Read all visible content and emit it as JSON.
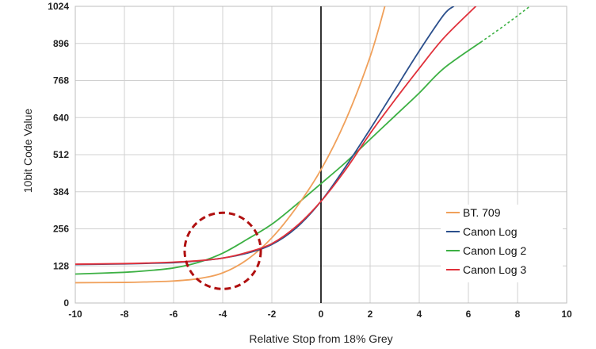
{
  "chart_data": {
    "type": "line",
    "xlabel": "Relative Stop from 18% Grey",
    "ylabel": "10bit Code Value",
    "xlim": [
      -10,
      10
    ],
    "ylim": [
      0,
      1024
    ],
    "xticks": [
      -10,
      -8,
      -6,
      -4,
      -2,
      0,
      2,
      4,
      6,
      8,
      10
    ],
    "yticks": [
      0,
      128,
      256,
      384,
      512,
      640,
      768,
      896,
      1024
    ],
    "grid": true,
    "legend": {
      "position": "bottom-right"
    },
    "series": [
      {
        "name": "BT. 709",
        "color": "#f0a05a",
        "points": [
          [
            -10,
            70
          ],
          [
            -8,
            71
          ],
          [
            -7,
            73
          ],
          [
            -6,
            76
          ],
          [
            -5,
            84
          ],
          [
            -4,
            104
          ],
          [
            -3,
            150
          ],
          [
            -2,
            225
          ],
          [
            -1,
            330
          ],
          [
            0,
            460
          ],
          [
            1,
            630
          ],
          [
            2,
            850
          ],
          [
            2.6,
            1024
          ]
        ]
      },
      {
        "name": "Canon Log",
        "color": "#2b4f8c",
        "points": [
          [
            -10,
            133
          ],
          [
            -8,
            135
          ],
          [
            -7,
            137
          ],
          [
            -6,
            139
          ],
          [
            -5,
            145
          ],
          [
            -4,
            155
          ],
          [
            -3,
            172
          ],
          [
            -2,
            202
          ],
          [
            -1,
            260
          ],
          [
            0,
            351
          ],
          [
            1,
            470
          ],
          [
            2,
            600
          ],
          [
            3,
            735
          ],
          [
            4,
            870
          ],
          [
            5,
            995
          ],
          [
            5.4,
            1024
          ]
        ]
      },
      {
        "name": "Canon Log 2",
        "color": "#3cb043",
        "points": [
          [
            -10,
            100
          ],
          [
            -8,
            106
          ],
          [
            -7,
            112
          ],
          [
            -6,
            121
          ],
          [
            -5,
            140
          ],
          [
            -4,
            172
          ],
          [
            -3,
            220
          ],
          [
            -2,
            272
          ],
          [
            -1,
            340
          ],
          [
            0,
            412
          ],
          [
            1,
            485
          ],
          [
            2,
            565
          ],
          [
            3,
            645
          ],
          [
            4,
            725
          ],
          [
            5,
            810
          ],
          [
            6.5,
            900
          ]
        ],
        "dashed_points": [
          [
            6.5,
            900
          ],
          [
            7.5,
            960
          ],
          [
            8.5,
            1024
          ]
        ]
      },
      {
        "name": "Canon Log 3",
        "color": "#e0303a",
        "points": [
          [
            -10,
            134
          ],
          [
            -8,
            136
          ],
          [
            -7,
            138
          ],
          [
            -6,
            141
          ],
          [
            -5,
            146
          ],
          [
            -4,
            155
          ],
          [
            -3,
            175
          ],
          [
            -2,
            205
          ],
          [
            -1,
            265
          ],
          [
            0,
            351
          ],
          [
            1,
            460
          ],
          [
            2,
            585
          ],
          [
            3,
            700
          ],
          [
            4,
            810
          ],
          [
            5,
            915
          ],
          [
            6.3,
            1024
          ]
        ]
      }
    ],
    "annotations": [
      {
        "type": "dashed-circle",
        "color": "#b01010",
        "center": [
          -4,
          180
        ],
        "radius_stops": 1.55
      }
    ]
  }
}
